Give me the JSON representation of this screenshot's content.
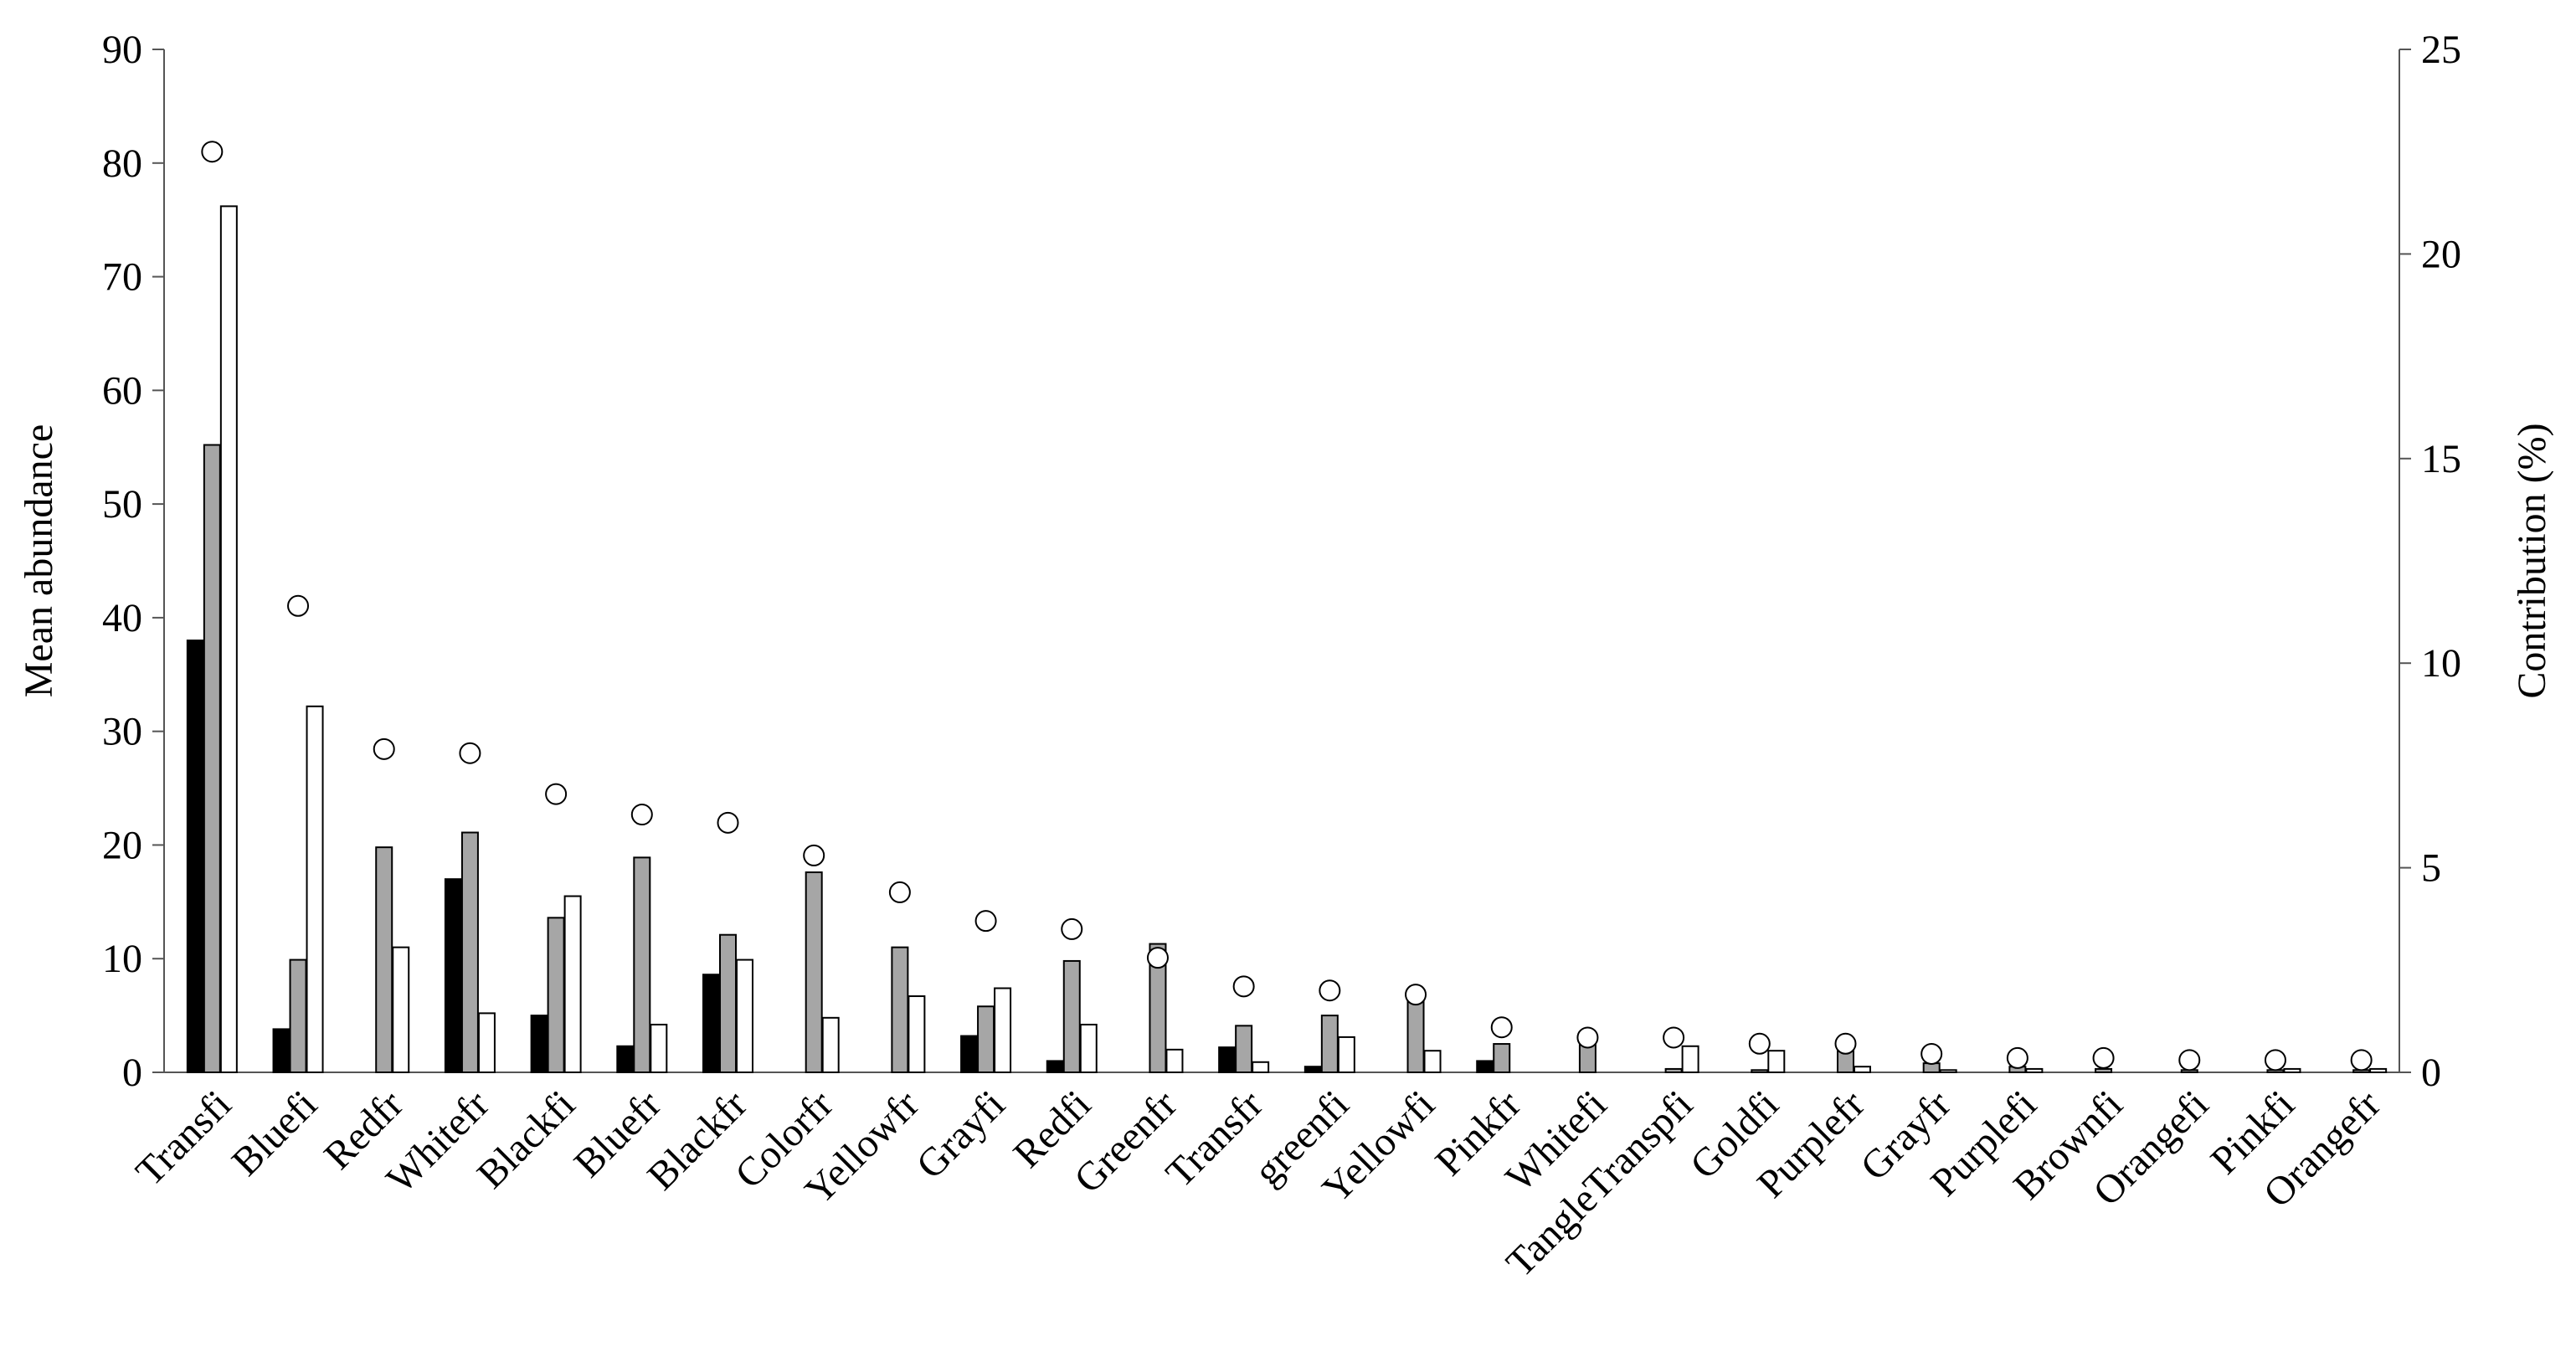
{
  "chart_data": {
    "type": "bar",
    "y_label": "Mean abundance",
    "y2_label": "Contribution (%)",
    "categories": [
      "Transfi",
      "Bluefi",
      "Redfr",
      "Whitefr",
      "Blackfi",
      "Bluefr",
      "Blackfr",
      "Colorfr",
      "Yellowfr",
      "Grayfi",
      "Redfi",
      "Greenfr",
      "Transfr",
      "greenfi",
      "Yellowfi",
      "Pinkfr",
      "Whitefi",
      "TangleTranspfi",
      "Goldfi",
      "Purplefr",
      "Grayfr",
      "Purplefi",
      "Brownfi",
      "Orangefi",
      "Pinkfi",
      "Orangefr"
    ],
    "series": [
      {
        "color": "#000000",
        "values": [
          38,
          3.8,
          0,
          17,
          5,
          2.3,
          8.6,
          0,
          0,
          3.2,
          1,
          0,
          2.2,
          0.5,
          0,
          1,
          0,
          0,
          0,
          0,
          0,
          0,
          0,
          0,
          0,
          0
        ]
      },
      {
        "color": "#a6a6a6",
        "values": [
          55.2,
          9.9,
          19.8,
          21.1,
          13.6,
          18.9,
          12.1,
          17.6,
          11,
          5.8,
          9.8,
          11.3,
          4.1,
          5,
          6.6,
          2.5,
          2.5,
          0.3,
          0.2,
          2.2,
          0.8,
          0.5,
          0.3,
          0.2,
          0.2,
          0.2
        ]
      },
      {
        "color": "#ffffff",
        "values": [
          76.2,
          32.2,
          11,
          5.2,
          15.5,
          4.2,
          9.9,
          4.8,
          6.7,
          7.4,
          4.2,
          2,
          0.9,
          3.1,
          1.9,
          0,
          0,
          2.3,
          1.9,
          0.5,
          0.2,
          0.3,
          0,
          0,
          0.3,
          0.3
        ]
      },
      {
        "color": "#ffffff",
        "axis": "y2",
        "values": [
          22.5,
          11.4,
          7.9,
          7.8,
          6.8,
          6.3,
          6.1,
          5.3,
          4.4,
          3.7,
          3.5,
          2.8,
          2.1,
          2.0,
          1.9,
          1.1,
          0.85,
          0.85,
          0.7,
          0.7,
          0.45,
          0.35,
          0.35,
          0.3,
          0.3,
          0.3
        ]
      }
    ],
    "ylim": [
      0,
      90
    ],
    "yticks": [
      0,
      10,
      20,
      30,
      40,
      50,
      60,
      70,
      80,
      90
    ],
    "y2lim": [
      0,
      25
    ],
    "y2ticks": [
      0,
      5,
      10,
      15,
      20,
      25
    ]
  }
}
